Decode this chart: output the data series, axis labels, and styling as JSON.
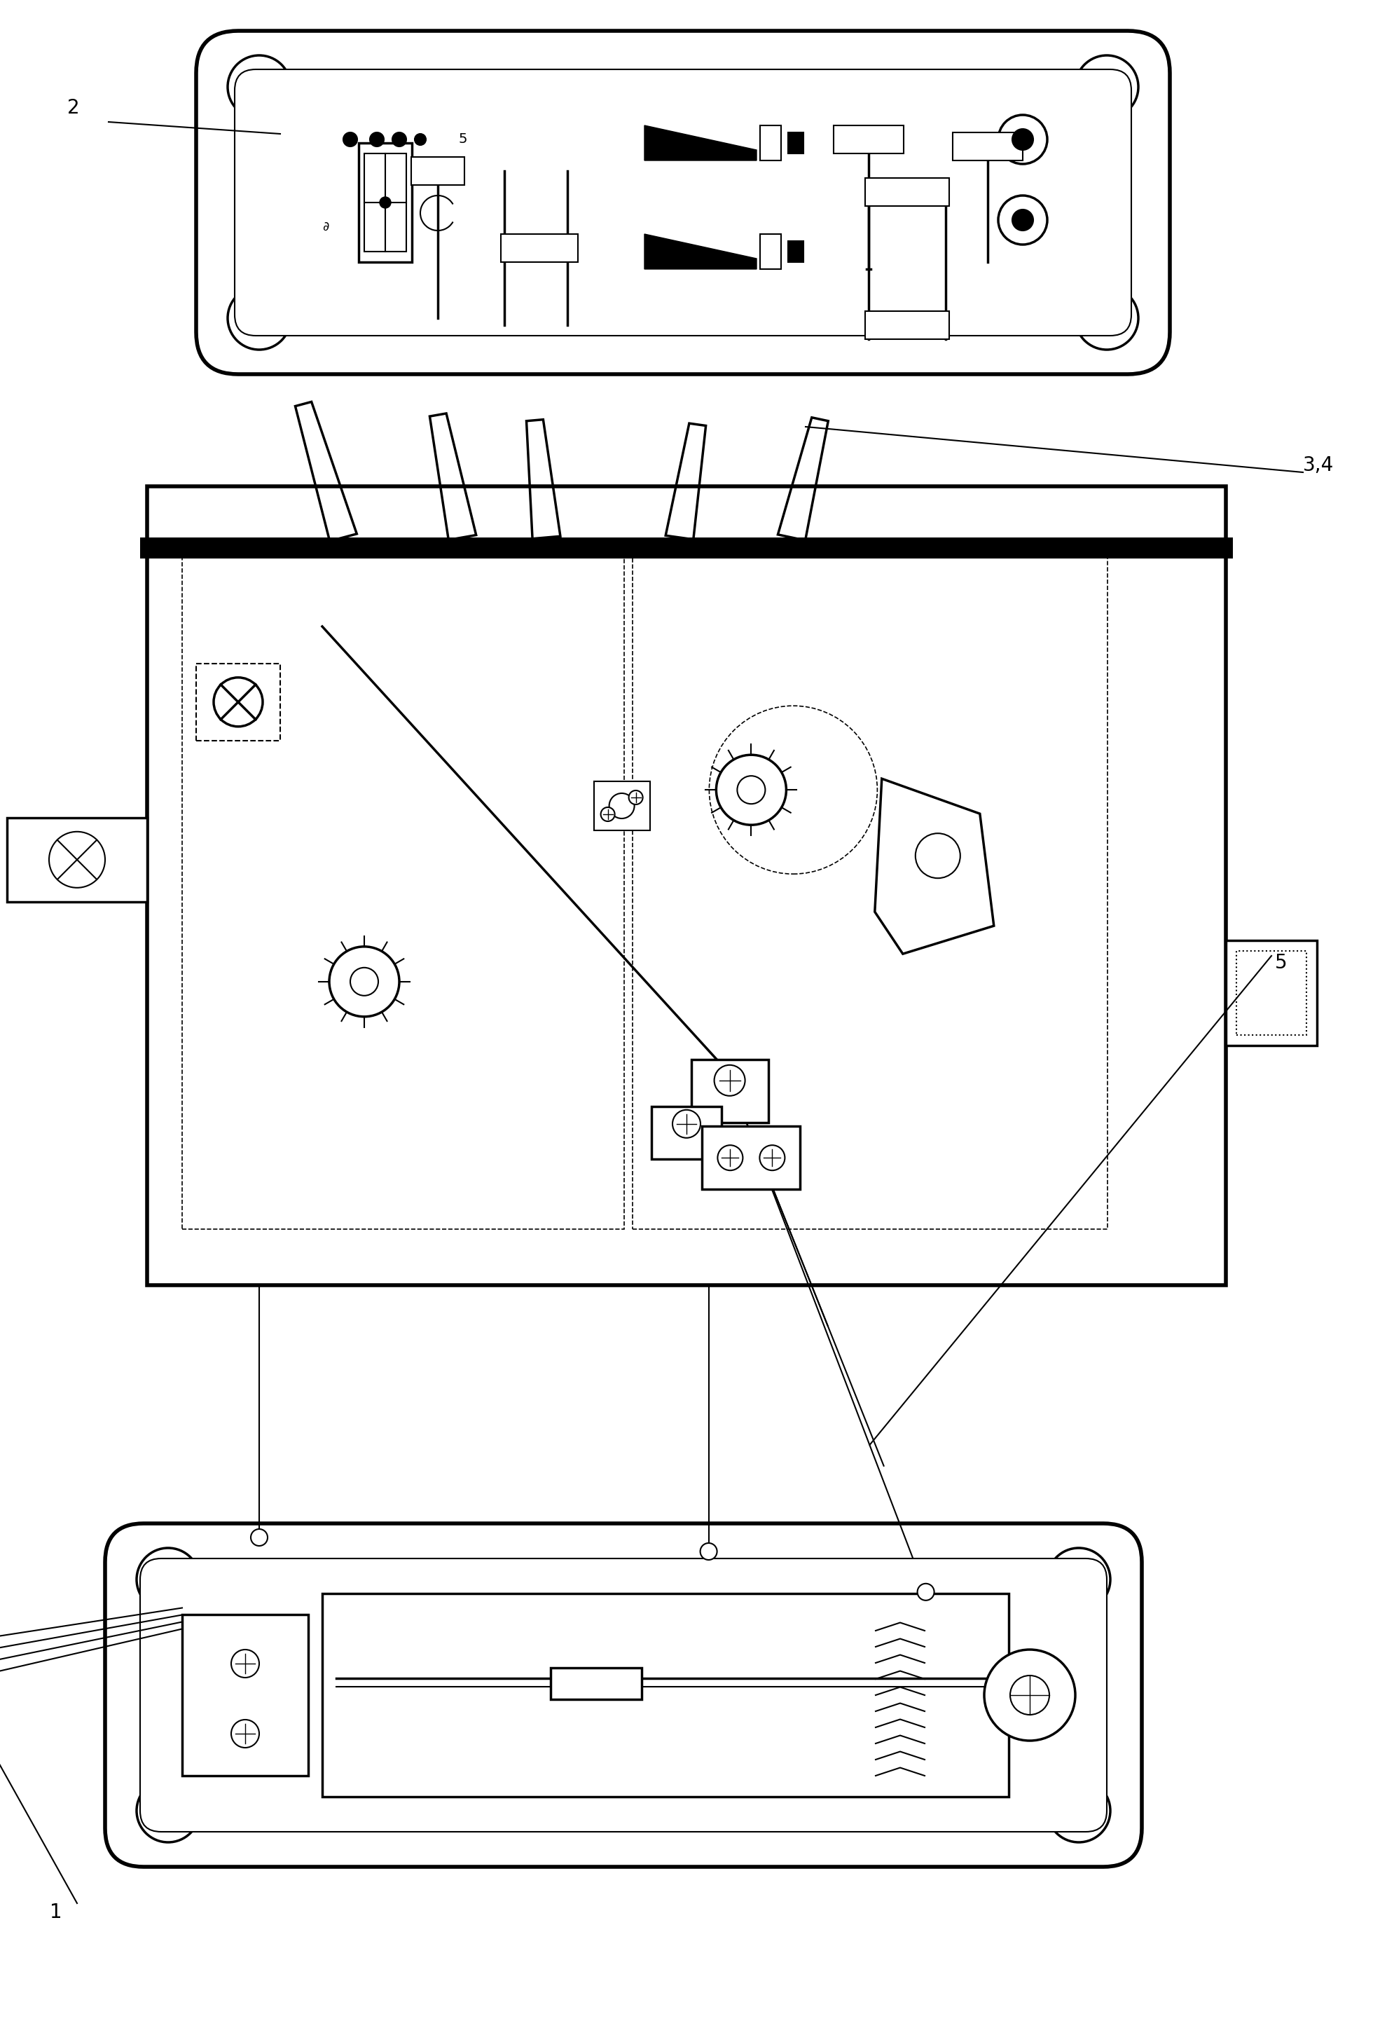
{
  "bg_color": "#ffffff",
  "line_color": "#000000",
  "fig_width": 19.81,
  "fig_height": 29.14,
  "label_fontsize": 20
}
